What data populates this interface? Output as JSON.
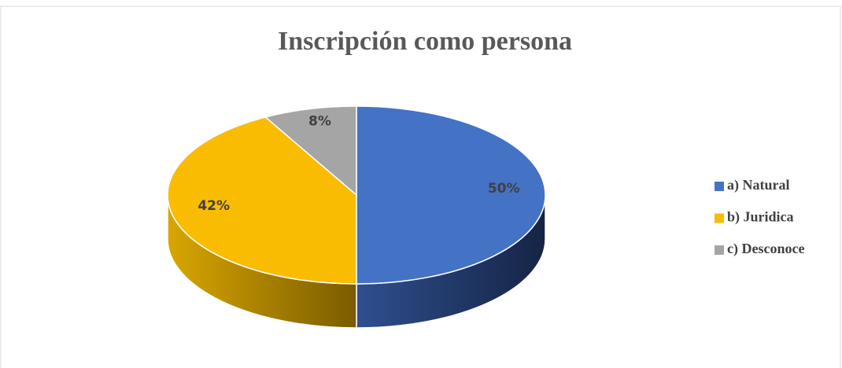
{
  "chart_data": {
    "type": "pie",
    "title": "Inscripción como persona",
    "categories": [
      "a)  Natural",
      "b)  Juridica",
      "c) Desconoce"
    ],
    "values": [
      50,
      42,
      8
    ],
    "value_labels": [
      "50%",
      "42%",
      "8%"
    ],
    "colors": [
      "#4472c4",
      "#f9bc00",
      "#a5a5a5"
    ],
    "legend": "right"
  }
}
